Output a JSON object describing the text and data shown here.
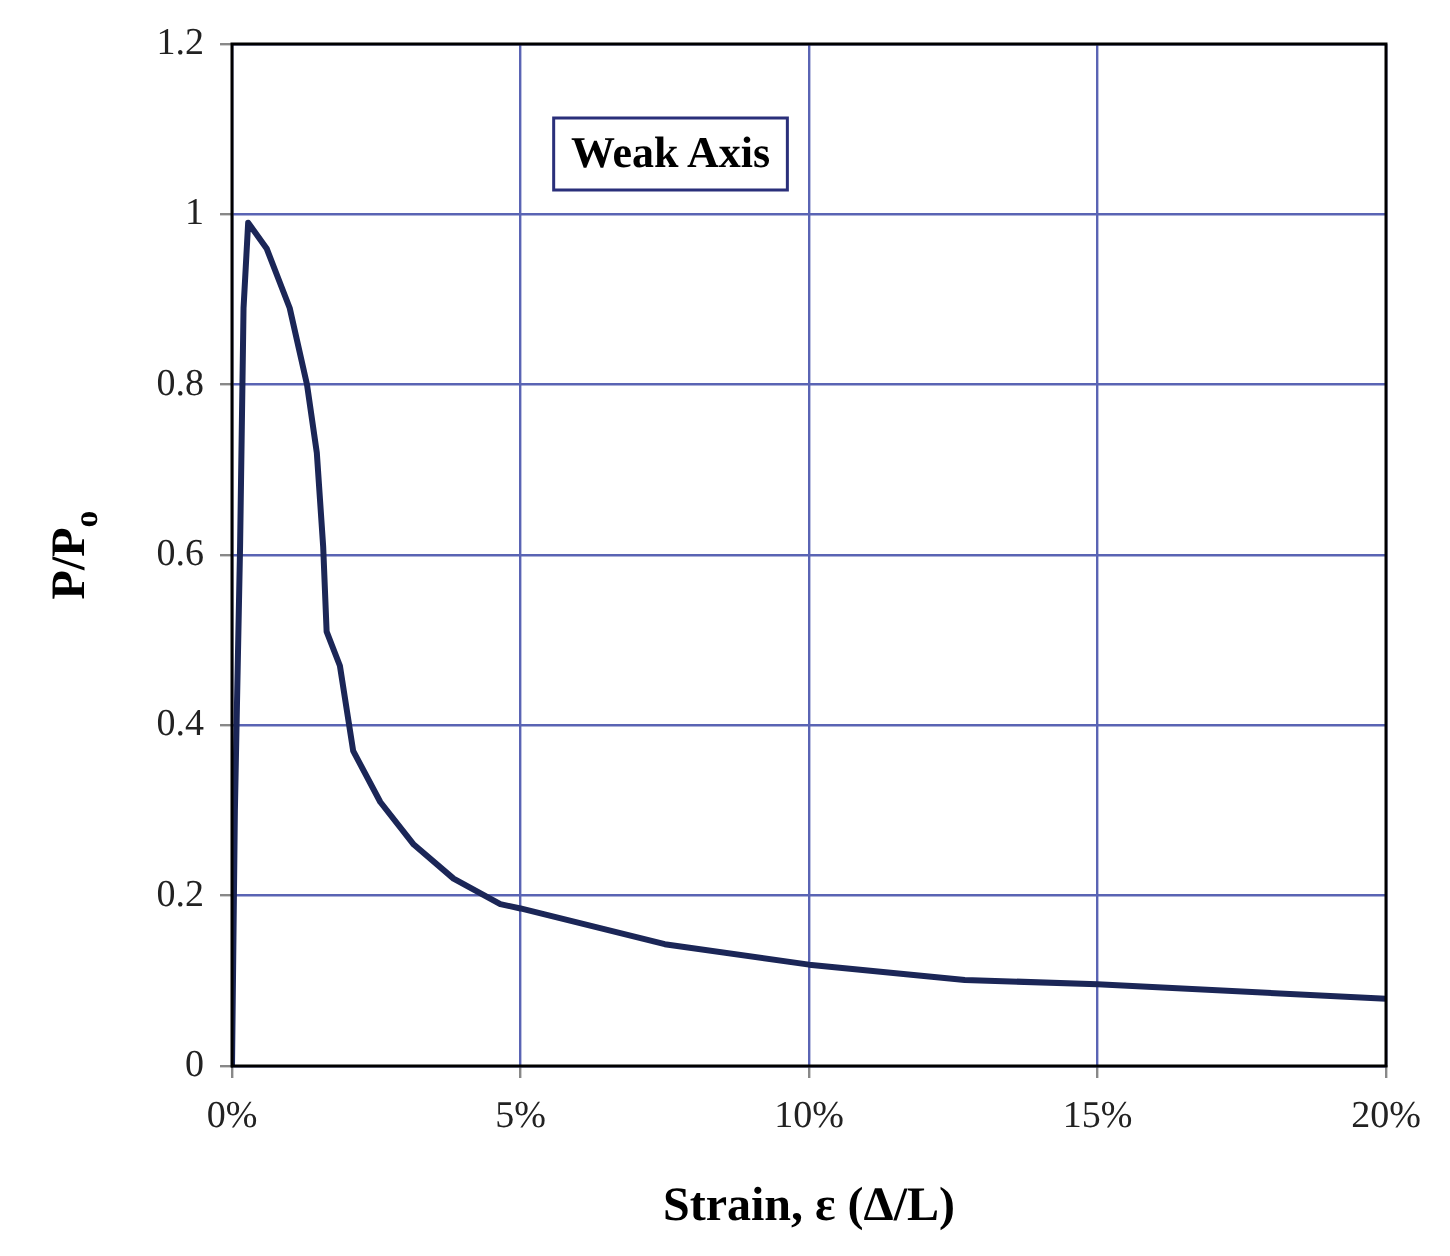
{
  "chart_data": {
    "type": "line",
    "xlabel": "Strain, ε (Δ/L)",
    "ylabel": "P/P$_{o}$",
    "annotations": [
      "Weak Axis"
    ],
    "xlim": [
      0,
      20
    ],
    "xticks": [
      {
        "value": 0,
        "label": "0%"
      },
      {
        "value": 5,
        "label": "5%"
      },
      {
        "value": 10,
        "label": "10%"
      },
      {
        "value": 15,
        "label": "15%"
      },
      {
        "value": 20,
        "label": "20%"
      }
    ],
    "ylim": [
      0,
      1.2
    ],
    "yticks": [
      0,
      0.2,
      0.4,
      0.6,
      0.8,
      1,
      1.2
    ],
    "grid": true,
    "legend": false,
    "marker": "none",
    "line_style": "solid",
    "series": [
      {
        "color": "#1b2657",
        "x": [
          0,
          0.05,
          0.14,
          0.2,
          0.28,
          0.6,
          1.0,
          1.3,
          1.47,
          1.58,
          1.64,
          1.87,
          2.1,
          2.57,
          3.15,
          3.84,
          4.65,
          5,
          7.5,
          10,
          12.7,
          15,
          20
        ],
        "values": [
          0,
          0.3,
          0.61,
          0.89,
          0.99,
          0.96,
          0.89,
          0.8,
          0.72,
          0.61,
          0.51,
          0.47,
          0.37,
          0.31,
          0.26,
          0.22,
          0.19,
          0.185,
          0.143,
          0.119,
          0.101,
          0.096,
          0.079
        ]
      }
    ]
  }
}
